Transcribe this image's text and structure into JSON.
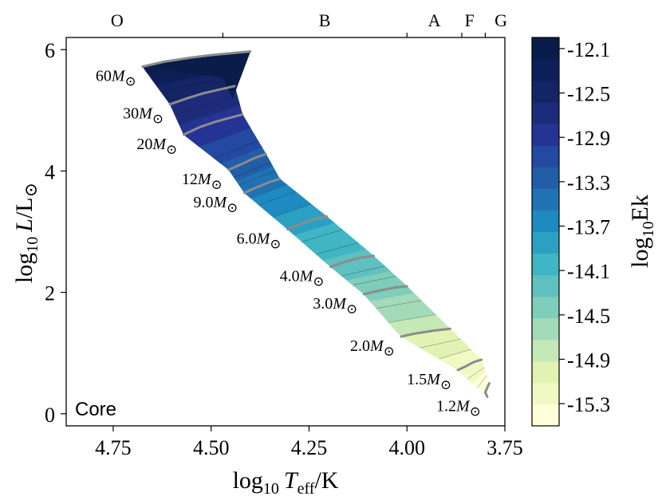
{
  "chart_data": {
    "type": "heatmap",
    "xlabel": {
      "main": "log",
      "sub": "10",
      "var": "T",
      "varsub": "eff",
      "unit": "/K"
    },
    "ylabel": {
      "main": "log",
      "sub": "10",
      "var": "L",
      "unit": "/L",
      "sun": "⊙"
    },
    "xlim": [
      4.87,
      3.75
    ],
    "ylim": [
      -0.2,
      6.2
    ],
    "x_ticks": [
      "4.75",
      "4.50",
      "4.25",
      "4.00",
      "3.75"
    ],
    "y_ticks": [
      "0",
      "2",
      "4",
      "6"
    ],
    "spectral_classes": [
      {
        "label": "O",
        "x_center": 4.74
      },
      {
        "label": "B",
        "x_center": 4.21
      },
      {
        "label": "A",
        "x_center": 3.93
      },
      {
        "label": "F",
        "x_center": 3.84
      },
      {
        "label": "G",
        "x_center": 3.76
      }
    ],
    "spectral_boundaries": [
      4.47,
      4.0,
      3.86,
      3.8
    ],
    "annotation": "Core",
    "colorbar": {
      "label": {
        "main": "log",
        "sub": "10",
        "rest": "Ek"
      },
      "min": -15.5,
      "max": -12.0,
      "levels": 18,
      "ticks": [
        "-12.1",
        "-12.5",
        "-12.9",
        "-13.3",
        "-13.7",
        "-14.1",
        "-14.5",
        "-14.9",
        "-15.3"
      ],
      "colors": [
        "#ffffd9",
        "#f1f9c2",
        "#e1f3b3",
        "#c5e8b7",
        "#a3dab8",
        "#7fcdbb",
        "#5fc0c0",
        "#40b5c4",
        "#2ca0c3",
        "#1f8ac0",
        "#2073b3",
        "#225ea8",
        "#2349a0",
        "#253494",
        "#1d2c7a",
        "#142566",
        "#0c1f58",
        "#081d4a"
      ]
    },
    "tracks": [
      {
        "mass": "60",
        "Teff": [
          4.675,
          4.62,
          4.55,
          4.5,
          4.45,
          4.4
        ],
        "logL": [
          5.72,
          5.8,
          5.87,
          5.91,
          5.94,
          5.97
        ],
        "logEk": -12.1
      },
      {
        "mass": "30",
        "Teff": [
          4.605,
          4.56,
          4.52,
          4.48,
          4.44
        ],
        "logL": [
          5.1,
          5.2,
          5.28,
          5.34,
          5.4
        ],
        "logEk": -12.6
      },
      {
        "mass": "20",
        "Teff": [
          4.57,
          4.53,
          4.49,
          4.45,
          4.42
        ],
        "logL": [
          4.6,
          4.72,
          4.81,
          4.88,
          4.93
        ],
        "logEk": -12.85
      },
      {
        "mass": "12",
        "Teff": [
          4.455,
          4.42,
          4.39,
          4.36
        ],
        "logL": [
          4.02,
          4.12,
          4.21,
          4.28
        ],
        "logEk": -13.2
      },
      {
        "mass": "9.0",
        "Teff": [
          4.415,
          4.38,
          4.35,
          4.325
        ],
        "logL": [
          3.64,
          3.74,
          3.82,
          3.87
        ],
        "logEk": -13.5
      },
      {
        "mass": "6.0",
        "Teff": [
          4.305,
          4.27,
          4.24,
          4.205
        ],
        "logL": [
          3.04,
          3.13,
          3.2,
          3.25
        ],
        "logEk": -13.9
      },
      {
        "mass": "4.0",
        "Teff": [
          4.195,
          4.16,
          4.12,
          4.085
        ],
        "logL": [
          2.42,
          2.5,
          2.57,
          2.6
        ],
        "logEk": -14.2
      },
      {
        "mass": "3.0",
        "Teff": [
          4.11,
          4.07,
          4.03,
          4.0
        ],
        "logL": [
          1.97,
          2.03,
          2.08,
          2.1
        ],
        "logEk": -14.45
      },
      {
        "mass": "2.0",
        "Teff": [
          4.015,
          3.98,
          3.93,
          3.89
        ],
        "logL": [
          1.27,
          1.32,
          1.37,
          1.4
        ],
        "logEk": -14.9
      },
      {
        "mass": "1.5",
        "Teff": [
          3.87,
          3.85,
          3.83,
          3.81
        ],
        "logL": [
          0.72,
          0.78,
          0.85,
          0.89
        ],
        "logEk": -15.2
      },
      {
        "mass": "1.2",
        "Teff": [
          3.795,
          3.8,
          3.795,
          3.79
        ],
        "logL": [
          0.28,
          0.35,
          0.43,
          0.5
        ],
        "logEk": -15.4
      }
    ],
    "mass_label_suffix": {
      "var": "M",
      "sun": "⊙"
    }
  }
}
